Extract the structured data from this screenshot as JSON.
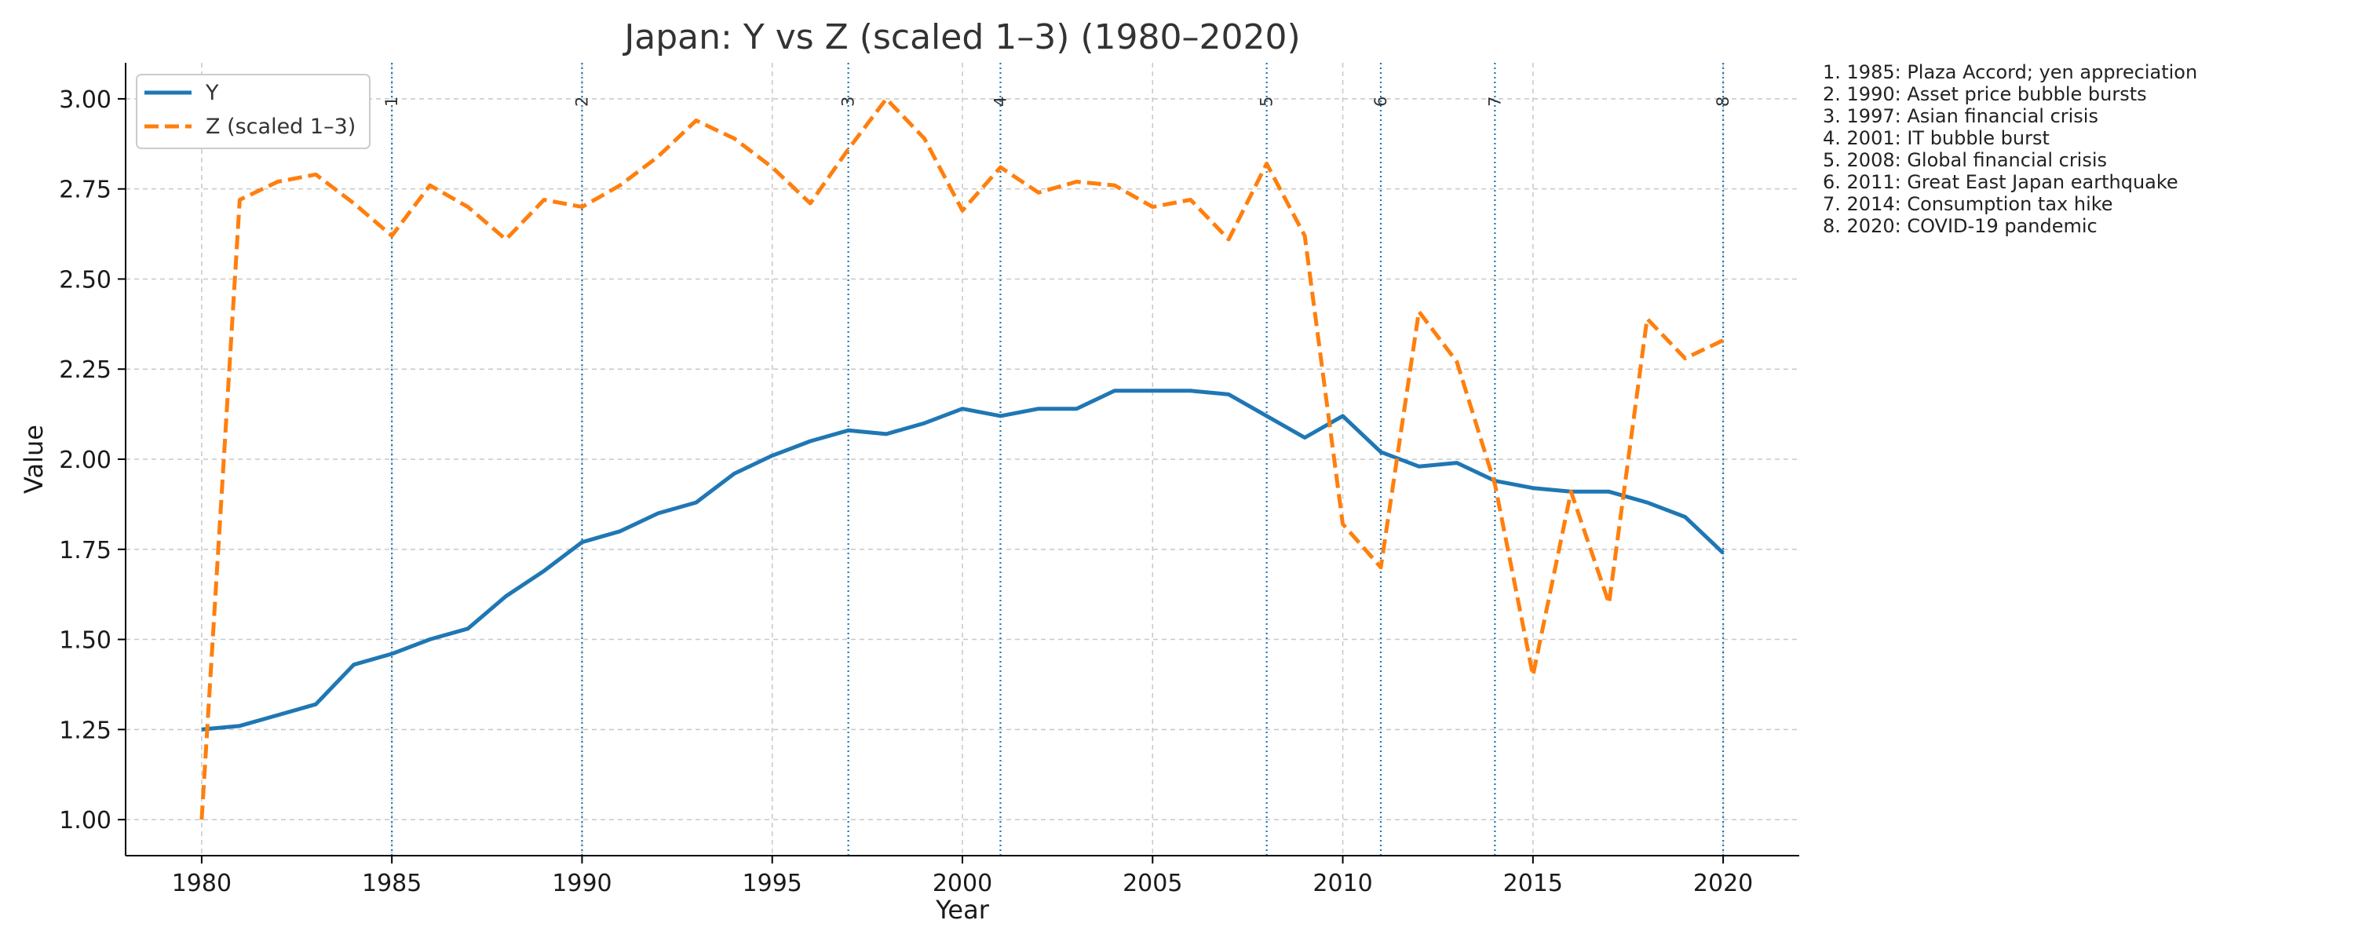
{
  "chart_data": {
    "type": "line",
    "title": "Japan: Y vs Z (scaled 1–3) (1980–2020)",
    "xlabel": "Year",
    "ylabel": "Value",
    "xlim": [
      1978,
      2022
    ],
    "ylim": [
      0.9,
      3.1
    ],
    "xticks": [
      1980,
      1985,
      1990,
      1995,
      2000,
      2005,
      2010,
      2015,
      2020
    ],
    "yticks": [
      1.0,
      1.25,
      1.5,
      1.75,
      2.0,
      2.25,
      2.5,
      2.75,
      3.0
    ],
    "ytick_labels": [
      "1.00",
      "1.25",
      "1.50",
      "1.75",
      "2.00",
      "2.25",
      "2.50",
      "2.75",
      "3.00"
    ],
    "grid": true,
    "legend": "top-left",
    "x": [
      1980,
      1981,
      1982,
      1983,
      1984,
      1985,
      1986,
      1987,
      1988,
      1989,
      1990,
      1991,
      1992,
      1993,
      1994,
      1995,
      1996,
      1997,
      1998,
      1999,
      2000,
      2001,
      2002,
      2003,
      2004,
      2005,
      2006,
      2007,
      2008,
      2009,
      2010,
      2011,
      2012,
      2013,
      2014,
      2015,
      2016,
      2017,
      2018,
      2019,
      2020
    ],
    "series": [
      {
        "name": "Y",
        "style": "solid",
        "color": "#1f77b4",
        "values": [
          1.25,
          1.26,
          1.29,
          1.32,
          1.43,
          1.46,
          1.5,
          1.53,
          1.62,
          1.69,
          1.77,
          1.8,
          1.85,
          1.88,
          1.96,
          2.01,
          2.05,
          2.08,
          2.07,
          2.1,
          2.14,
          2.12,
          2.14,
          2.14,
          2.19,
          2.19,
          2.19,
          2.18,
          2.12,
          2.06,
          2.12,
          2.02,
          1.98,
          1.99,
          1.94,
          1.92,
          1.91,
          1.91,
          1.88,
          1.84,
          1.74
        ]
      },
      {
        "name": "Z (scaled 1–3)",
        "style": "dashed",
        "color": "#ff7f0e",
        "values": [
          1.0,
          2.72,
          2.77,
          2.79,
          2.71,
          2.62,
          2.76,
          2.7,
          2.61,
          2.72,
          2.7,
          2.76,
          2.84,
          2.94,
          2.89,
          2.81,
          2.71,
          2.86,
          3.0,
          2.89,
          2.69,
          2.81,
          2.74,
          2.77,
          2.76,
          2.7,
          2.72,
          2.61,
          2.82,
          2.62,
          1.82,
          1.7,
          2.41,
          2.27,
          1.93,
          1.4,
          1.91,
          1.6,
          2.39,
          2.28,
          2.33
        ]
      }
    ],
    "events": [
      {
        "num": "1",
        "year": 1985,
        "label": "1. 1985: Plaza Accord; yen appreciation"
      },
      {
        "num": "2",
        "year": 1990,
        "label": "2. 1990: Asset price bubble bursts"
      },
      {
        "num": "3",
        "year": 1997,
        "label": "3. 1997: Asian financial crisis"
      },
      {
        "num": "4",
        "year": 2001,
        "label": "4. 2001: IT bubble burst"
      },
      {
        "num": "5",
        "year": 2008,
        "label": "5. 2008: Global financial crisis"
      },
      {
        "num": "6",
        "year": 2011,
        "label": "6. 2011: Great East Japan earthquake"
      },
      {
        "num": "7",
        "year": 2014,
        "label": "7. 2014: Consumption tax hike"
      },
      {
        "num": "8",
        "year": 2020,
        "label": "8. 2020: COVID-19 pandemic"
      }
    ]
  }
}
